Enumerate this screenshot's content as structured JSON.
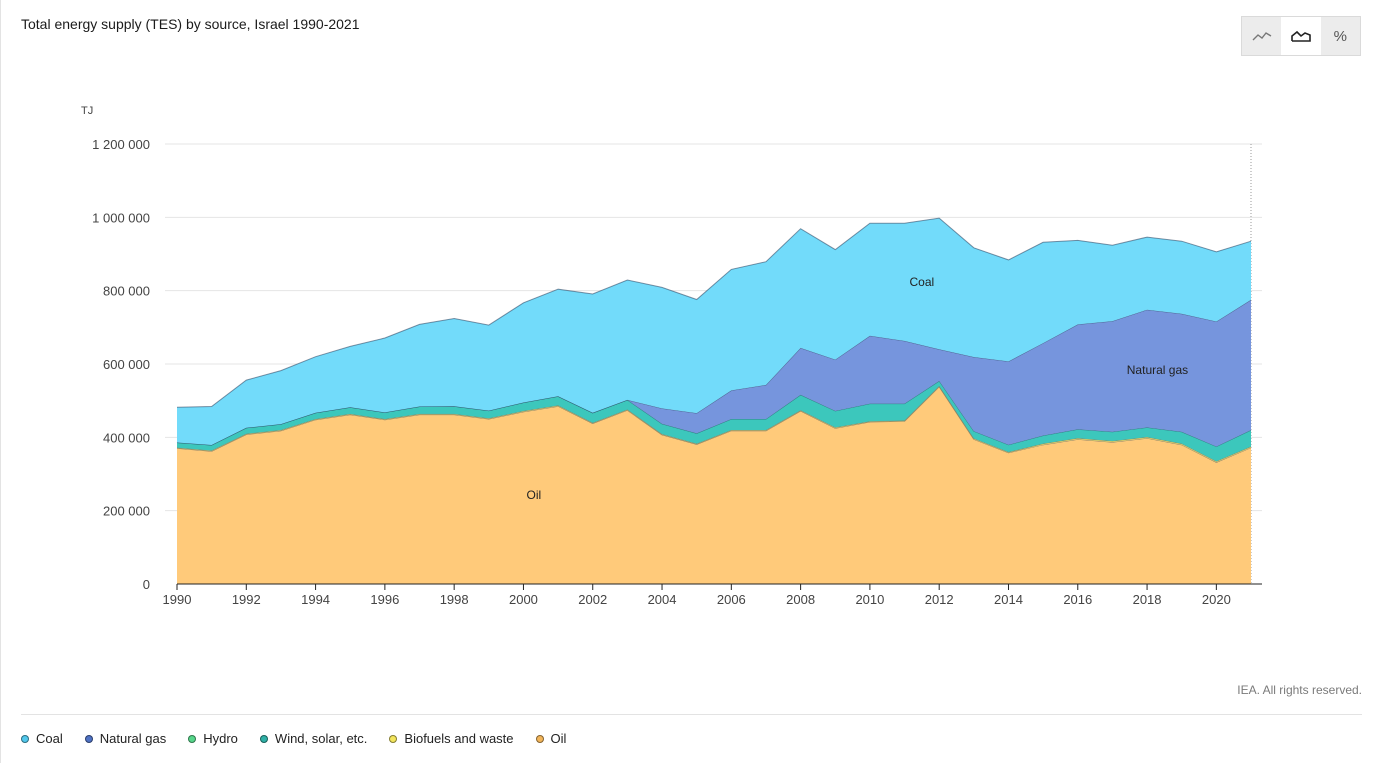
{
  "title": "Total energy supply (TES) by source, Israel 1990-2021",
  "copyright": "IEA. All rights reserved.",
  "view_buttons": [
    {
      "name": "line-view-button",
      "icon": "line-chart-icon",
      "active": false
    },
    {
      "name": "area-view-button",
      "icon": "area-chart-icon",
      "active": true
    },
    {
      "name": "percent-view-button",
      "icon": "percent-icon",
      "label": "%",
      "active": false
    }
  ],
  "chart_data": {
    "type": "area",
    "stacked": true,
    "ylabel": "TJ",
    "ylim": [
      0,
      1200000
    ],
    "yticks": [
      0,
      200000,
      400000,
      600000,
      800000,
      1000000,
      1200000
    ],
    "ytick_labels": [
      "0",
      "200 000",
      "400 000",
      "600 000",
      "800 000",
      "1 000 000",
      "1 200 000"
    ],
    "xticks": [
      1990,
      1992,
      1994,
      1996,
      1998,
      2000,
      2002,
      2004,
      2006,
      2008,
      2010,
      2012,
      2014,
      2016,
      2018,
      2020
    ],
    "x": [
      1990,
      1991,
      1992,
      1993,
      1994,
      1995,
      1996,
      1997,
      1998,
      1999,
      2000,
      2001,
      2002,
      2003,
      2004,
      2005,
      2006,
      2007,
      2008,
      2009,
      2010,
      2011,
      2012,
      2013,
      2014,
      2015,
      2016,
      2017,
      2018,
      2019,
      2020,
      2021
    ],
    "grid": true,
    "series": [
      {
        "name": "Oil",
        "color": "#FFCA7A",
        "values": [
          370000,
          362000,
          408000,
          418000,
          448000,
          462000,
          448000,
          462000,
          462000,
          450000,
          470000,
          485000,
          438000,
          474000,
          407000,
          381000,
          418000,
          418000,
          472000,
          425000,
          442000,
          444000,
          538000,
          395000,
          358000,
          380000,
          395000,
          387000,
          398000,
          380000,
          332000,
          372000
        ]
      },
      {
        "name": "Biofuels and waste",
        "color": "#F6E96B",
        "values": [
          2000,
          2000,
          2000,
          2000,
          2000,
          2000,
          2000,
          2000,
          2000,
          2000,
          2000,
          2000,
          2000,
          2000,
          2000,
          2000,
          2000,
          2000,
          2000,
          2000,
          2000,
          2000,
          2000,
          2000,
          2000,
          3000,
          3000,
          3000,
          3000,
          3000,
          3000,
          3000
        ]
      },
      {
        "name": "Wind, solar, etc.",
        "color": "#3CC7BC",
        "values": [
          14000,
          15000,
          16000,
          16000,
          17000,
          18000,
          18000,
          20000,
          21000,
          21000,
          23000,
          25000,
          27000,
          26000,
          28000,
          28000,
          30000,
          30000,
          42000,
          45000,
          48000,
          46000,
          14000,
          20000,
          20000,
          22000,
          24000,
          25000,
          26000,
          32000,
          40000,
          45000
        ]
      },
      {
        "name": "Hydro",
        "color": "#56D68A",
        "values": [
          0,
          0,
          0,
          0,
          0,
          0,
          0,
          0,
          0,
          0,
          0,
          0,
          0,
          0,
          0,
          0,
          0,
          0,
          0,
          0,
          0,
          0,
          0,
          0,
          0,
          0,
          0,
          0,
          0,
          0,
          0,
          0
        ]
      },
      {
        "name": "Natural gas",
        "color": "#7695DD",
        "values": [
          0,
          0,
          0,
          0,
          0,
          0,
          0,
          0,
          0,
          0,
          0,
          0,
          0,
          0,
          42000,
          55000,
          78000,
          93000,
          128000,
          140000,
          185000,
          171000,
          86000,
          202000,
          227000,
          252000,
          286000,
          302000,
          321000,
          322000,
          341000,
          355000
        ]
      },
      {
        "name": "Coal",
        "color": "#72DBFA",
        "values": [
          96000,
          105000,
          130000,
          146000,
          153000,
          166000,
          203000,
          224000,
          239000,
          233000,
          272000,
          292000,
          324000,
          327000,
          330000,
          310000,
          330000,
          336000,
          325000,
          300000,
          307000,
          321000,
          358000,
          298000,
          277000,
          275000,
          229000,
          207000,
          198000,
          198000,
          190000,
          160000
        ]
      }
    ],
    "annotations": [
      {
        "series": "Coal",
        "text": "Coal",
        "x": 2011.5,
        "y": 813000
      },
      {
        "series": "Natural gas",
        "text": "Natural gas",
        "x": 2018.3,
        "y": 573000
      },
      {
        "series": "Oil",
        "text": "Oil",
        "x": 2000.3,
        "y": 232000
      }
    ]
  },
  "legend": [
    {
      "label": "Coal",
      "color": "#52C8EC"
    },
    {
      "label": "Natural gas",
      "color": "#4F72C4"
    },
    {
      "label": "Hydro",
      "color": "#56D68A"
    },
    {
      "label": "Wind, solar, etc.",
      "color": "#2FB0A6"
    },
    {
      "label": "Biofuels and waste",
      "color": "#F3E55C"
    },
    {
      "label": "Oil",
      "color": "#F2B55A"
    }
  ]
}
